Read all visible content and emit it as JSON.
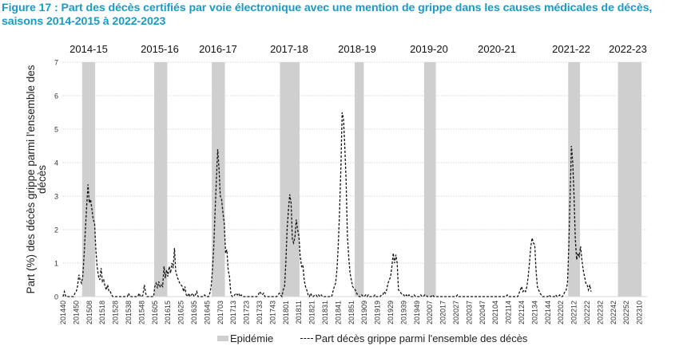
{
  "title": "Figure 17 : Part des décès certifiés par voie électronique avec une mention de grippe dans les causes médicales de décès, saisons 2014-2015 à 2022-2023",
  "chart_data": {
    "type": "line",
    "title": "Figure 17 : Part des décès certifiés par voie électronique avec une mention de grippe dans les causes médicales de décès, saisons 2014-2015 à 2022-2023",
    "xlabel": "",
    "ylabel": "Part (%) des décès  grippe parmi l'ensemble des décès",
    "ylim": [
      0,
      7
    ],
    "yticks": [
      0,
      1,
      2,
      3,
      4,
      5,
      6,
      7
    ],
    "grid": true,
    "legend_position": "bottom",
    "x_start_week": "201440",
    "xtick_labels": [
      "201440",
      "201450",
      "201508",
      "201518",
      "201528",
      "201538",
      "201548",
      "201605",
      "201615",
      "201625",
      "201635",
      "201645",
      "201703",
      "201713",
      "201723",
      "201733",
      "201743",
      "201801",
      "201811",
      "201821",
      "201831",
      "201841",
      "201851",
      "201909",
      "201919",
      "201929",
      "201939",
      "201949",
      "202007",
      "202017",
      "202027",
      "202037",
      "202047",
      "202104",
      "202114",
      "202124",
      "202134",
      "202144",
      "202202",
      "202212",
      "202222",
      "202232",
      "202242",
      "202252",
      "202310"
    ],
    "xtick_every_weeks": 10,
    "seasons": [
      {
        "label": "2014-15",
        "epidemic_start_week": 15,
        "epidemic_end_week": 24
      },
      {
        "label": "2015-16",
        "epidemic_start_week": 70,
        "epidemic_end_week": 79
      },
      {
        "label": "2016-17",
        "epidemic_start_week": 114,
        "epidemic_end_week": 123
      },
      {
        "label": "2017-18",
        "epidemic_start_week": 166,
        "epidemic_end_week": 180
      },
      {
        "label": "2018-19",
        "epidemic_start_week": 223,
        "epidemic_end_week": 229
      },
      {
        "label": "2019-20",
        "epidemic_start_week": 276,
        "epidemic_end_week": 284
      },
      {
        "label": "2020-21",
        "epidemic_start_week": null,
        "epidemic_end_week": null
      },
      {
        "label": "2021-22",
        "epidemic_start_week": 386,
        "epidemic_end_week": 394
      },
      {
        "label": "2022-23",
        "epidemic_start_week": 424,
        "epidemic_end_week": 441
      }
    ],
    "series": [
      {
        "name": "Part décès grippe parmi l'ensemble des décès",
        "style": "dashed",
        "color": "#111111",
        "values": [
          0,
          0.15,
          0,
          0,
          0,
          0,
          0,
          0,
          0,
          0.1,
          0.15,
          0.3,
          0.65,
          0.5,
          0.4,
          0.6,
          1.2,
          2.0,
          2.7,
          3.35,
          2.8,
          2.9,
          2.6,
          2.3,
          2.2,
          1.4,
          0.9,
          0.6,
          0.5,
          0.85,
          0.45,
          0.5,
          0.3,
          0.2,
          0.35,
          0.15,
          0.15,
          0.05,
          0,
          0,
          0,
          0,
          0,
          0,
          0,
          0,
          0,
          0,
          0,
          0,
          0.1,
          0,
          0,
          0,
          0,
          0,
          0,
          0,
          0.1,
          0,
          0,
          0.05,
          0.35,
          0.1,
          0,
          0,
          0,
          0,
          0,
          0,
          0.3,
          0.4,
          0.25,
          0.45,
          0.3,
          0.35,
          0.3,
          0.9,
          0.55,
          0.8,
          0.6,
          0.9,
          0.7,
          1.0,
          0.85,
          1.45,
          0.75,
          0.6,
          0.5,
          0.4,
          0.35,
          0.3,
          0.15,
          0.3,
          0.05,
          0,
          0.1,
          0,
          0.05,
          0.1,
          0,
          0.05,
          0.15,
          0,
          0,
          0,
          0,
          0,
          0.05,
          0,
          0,
          0,
          0.1,
          0.3,
          0.8,
          1.5,
          2.5,
          3.5,
          4.4,
          3.8,
          3.0,
          2.9,
          2.5,
          2.2,
          1.3,
          1.4,
          0.8,
          0.6,
          0.1,
          0,
          0,
          0.05,
          0.1,
          0.05,
          0.1,
          0,
          0.05,
          0,
          0,
          0,
          0,
          0,
          0,
          0,
          0,
          0,
          0,
          0,
          0,
          0.05,
          0.15,
          0.1,
          0.05,
          0.1,
          0,
          0,
          0,
          0,
          0,
          0,
          0,
          0,
          0,
          0,
          0.05,
          0.1,
          0.05,
          0,
          0.2,
          0.3,
          1.0,
          2.0,
          2.6,
          3.05,
          2.8,
          1.7,
          1.6,
          1.8,
          2.3,
          2.0,
          1.8,
          1.2,
          0.9,
          0.95,
          0.5,
          0.3,
          0.2,
          0.05,
          0,
          0.1,
          0,
          0,
          0.05,
          0.05,
          0,
          0.05,
          0,
          0.05,
          0,
          0,
          0,
          0,
          0,
          0,
          0,
          0,
          0.15,
          0.3,
          0.4,
          0.8,
          1.5,
          2.5,
          3.8,
          5.5,
          5.3,
          4.5,
          3.5,
          1.8,
          1.2,
          0.7,
          0.5,
          0.3,
          0.25,
          0.2,
          0.1,
          0.05,
          0,
          0,
          0.05,
          0,
          0,
          0.05,
          0,
          0.05,
          0,
          0,
          0,
          0,
          0.05,
          0,
          0,
          0,
          0,
          0.05,
          0.05,
          0.15,
          0.1,
          0.2,
          0.4,
          0.5,
          0.6,
          0.9,
          1.3,
          1.0,
          1.25,
          1.0,
          0.2,
          0.15,
          0.1,
          0.05,
          0.05,
          0,
          0.05,
          0,
          0.05,
          0,
          0,
          0,
          0.05,
          0,
          0,
          0,
          0,
          0.05,
          0,
          0,
          0.05,
          0.05,
          0,
          0,
          0,
          0,
          0.05,
          0,
          0,
          0,
          0,
          0,
          0,
          0,
          0,
          0,
          0,
          0,
          0,
          0,
          0,
          0,
          0,
          0,
          0,
          0.05,
          0,
          0,
          0,
          0,
          0,
          0,
          0,
          0,
          0,
          0,
          0,
          0,
          0,
          0,
          0,
          0,
          0,
          0,
          0,
          0,
          0,
          0,
          0,
          0,
          0,
          0,
          0,
          0,
          0,
          0,
          0,
          0,
          0,
          0,
          0,
          0,
          0,
          0.05,
          0,
          0,
          0,
          0,
          0,
          0,
          0,
          0,
          0.1,
          0.2,
          0.3,
          0.15,
          0.2,
          0.15,
          0.3,
          0.6,
          1.0,
          1.5,
          1.75,
          1.6,
          1.55,
          0.8,
          0.3,
          0.2,
          0.1,
          0.05,
          0,
          0,
          0,
          0,
          0,
          0.05,
          0,
          0,
          0,
          0,
          0.05,
          0,
          0,
          0.05,
          0,
          0,
          0.05,
          0.15,
          0.2,
          0.4,
          1.5,
          3.0,
          4.5,
          4.0,
          3.0,
          1.7,
          1.1,
          1.3,
          1.2,
          1.5,
          1.1,
          0.8,
          0.6,
          0.4,
          0.35,
          0.2,
          0.35,
          0.15
        ]
      }
    ]
  },
  "legend": {
    "epidemic": "Epidémie",
    "series": "Part décès grippe parmi l'ensemble des décès"
  }
}
